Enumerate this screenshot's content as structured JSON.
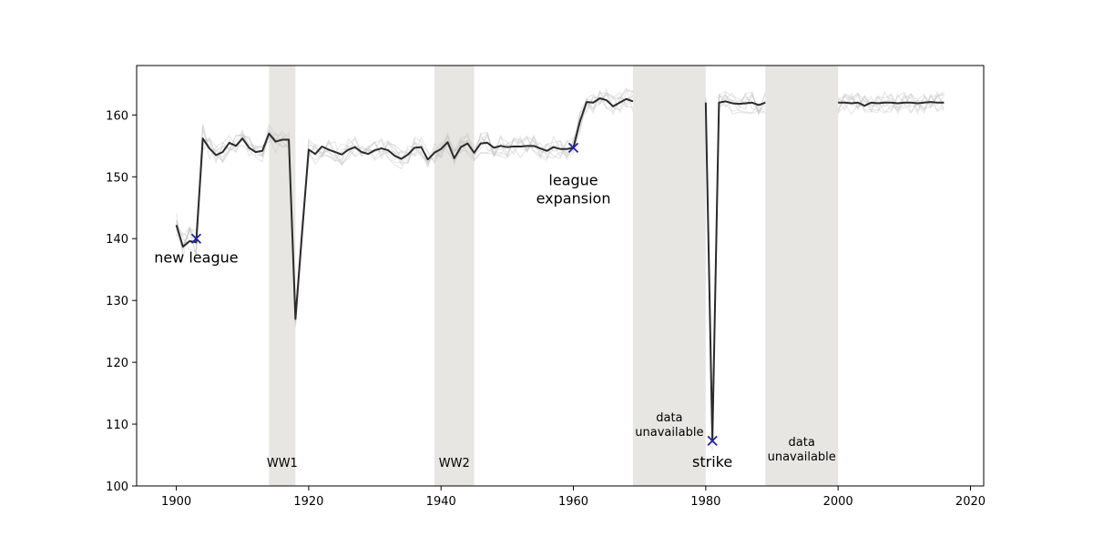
{
  "chart_data": {
    "type": "line",
    "title": "",
    "xlabel": "",
    "ylabel": "",
    "xlim": [
      1894,
      2022
    ],
    "ylim": [
      100,
      168
    ],
    "grid": false,
    "legend": "none",
    "xticks": [
      1900,
      1920,
      1940,
      1960,
      1980,
      2000,
      2020
    ],
    "xtick_labels": [
      "1900",
      "1920",
      "1940",
      "1960",
      "1980",
      "2000",
      "2020"
    ],
    "yticks": [
      100,
      110,
      120,
      130,
      140,
      150,
      160
    ],
    "ytick_labels": [
      "100",
      "110",
      "120",
      "130",
      "140",
      "150",
      "160"
    ],
    "shaded_regions": [
      {
        "start": 1914,
        "end": 1918,
        "label": "WW1",
        "label_y": 104
      },
      {
        "start": 1939,
        "end": 1945,
        "label": "WW2",
        "label_y": 104
      },
      {
        "start": 1969,
        "end": 1980,
        "label": "data\nunavailable",
        "label_y": 109
      },
      {
        "start": 1989,
        "end": 2000,
        "label": "data\nunavailable",
        "label_y": 105
      }
    ],
    "annotations": [
      {
        "x": 1903,
        "y": 140,
        "text": "new league",
        "label_x": 1903,
        "label_y": 137
      },
      {
        "x": 1960,
        "y": 154.7,
        "text": "league\nexpansion",
        "label_x": 1960,
        "label_y": 149.5
      },
      {
        "x": 1981,
        "y": 107.3,
        "text": "strike",
        "label_x": 1981,
        "label_y": 104
      }
    ],
    "series": [
      {
        "x": [
          1900,
          1901,
          1902,
          1903,
          1904,
          1905,
          1906,
          1907,
          1908,
          1909,
          1910,
          1911,
          1912,
          1913,
          1914,
          1915,
          1916,
          1917,
          1918,
          1919,
          1920,
          1921,
          1922,
          1923,
          1924,
          1925,
          1926,
          1927,
          1928,
          1929,
          1930,
          1931,
          1932,
          1933,
          1934,
          1935,
          1936,
          1937,
          1938,
          1939,
          1940,
          1941,
          1942,
          1943,
          1944,
          1945,
          1946,
          1947,
          1948,
          1949,
          1950,
          1951,
          1952,
          1953,
          1954,
          1955,
          1956,
          1957,
          1958,
          1959,
          1960,
          1961,
          1962,
          1963,
          1964,
          1965,
          1966,
          1967,
          1968,
          1969
        ],
        "values": [
          142.2,
          138.7,
          139.6,
          139.4,
          156.2,
          154.6,
          153.5,
          154.0,
          155.5,
          155.0,
          156.2,
          154.7,
          154.0,
          154.2,
          157.0,
          155.7,
          156.0,
          156.0,
          127.0,
          141.0,
          154.4,
          153.7,
          154.9,
          154.4,
          154.0,
          153.6,
          154.4,
          154.8,
          154.0,
          153.7,
          154.3,
          154.6,
          154.3,
          153.4,
          152.9,
          153.6,
          154.7,
          154.8,
          152.8,
          153.9,
          154.5,
          155.6,
          153.0,
          154.8,
          155.4,
          153.9,
          155.4,
          155.5,
          154.7,
          155.0,
          154.8,
          154.9,
          154.9,
          155.0,
          155.0,
          154.6,
          154.2,
          154.8,
          154.5,
          154.5,
          154.7,
          159.0,
          162.1,
          162.0,
          162.7,
          162.4,
          161.4,
          162.0,
          162.6,
          162.2
        ]
      },
      {
        "x": [
          1980,
          1981,
          1982,
          1983,
          1984,
          1985,
          1986,
          1987,
          1988,
          1989
        ],
        "values": [
          162.0,
          107.3,
          162.0,
          162.2,
          161.9,
          161.8,
          161.9,
          162.0,
          161.6,
          162.0
        ]
      },
      {
        "x": [
          2000,
          2001,
          2002,
          2003,
          2004,
          2005,
          2006,
          2007,
          2008,
          2009,
          2010,
          2011,
          2012,
          2013,
          2014,
          2015,
          2016
        ],
        "values": [
          162.0,
          162.0,
          161.9,
          162.0,
          161.5,
          162.0,
          161.9,
          162.0,
          162.0,
          161.9,
          162.0,
          162.0,
          161.9,
          162.0,
          162.1,
          162.0,
          162.0
        ]
      }
    ],
    "colors": {
      "main_line": "#2b2b2b",
      "ghost_line": "#bdbdbd",
      "shade": "#e8e6e2",
      "marker": "#2222aa"
    }
  }
}
